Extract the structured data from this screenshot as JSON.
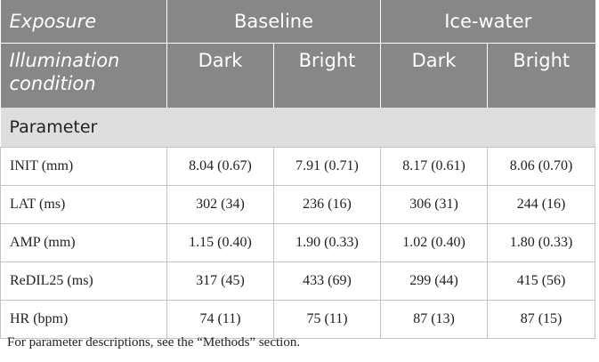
{
  "header": {
    "exposure": "Exposure",
    "groups": [
      "Baseline",
      "Ice-water"
    ],
    "illumination": "Illumination condition",
    "conditions": [
      "Dark",
      "Bright",
      "Dark",
      "Bright"
    ]
  },
  "table": {
    "section": "Parameter",
    "rows": [
      [
        "INIT (mm)",
        "8.04 (0.67)",
        "7.91 (0.71)",
        "8.17 (0.61)",
        "8.06 (0.70)"
      ],
      [
        "LAT (ms)",
        "302 (34)",
        "236 (16)",
        "306 (31)",
        "244 (16)"
      ],
      [
        "AMP (mm)",
        "1.15 (0.40)",
        "1.90 (0.33)",
        "1.02 (0.40)",
        "1.80 (0.33)"
      ],
      [
        "ReDIL25 (ms)",
        "317 (45)",
        "433 (69)",
        "299 (44)",
        "415 (56)"
      ],
      [
        "HR (bpm)",
        "74 (11)",
        "75 (11)",
        "87 (13)",
        "87 (15)"
      ]
    ]
  },
  "footnote": "For parameter descriptions, see the “Methods” section."
}
